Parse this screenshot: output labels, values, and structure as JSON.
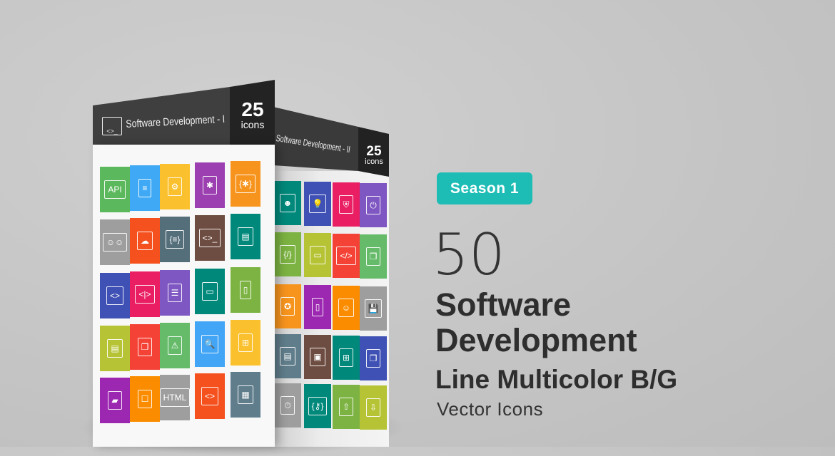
{
  "colors": {
    "accent": "#1dbdb6",
    "header_dark": "#3c3c3c",
    "count_dark": "#222222",
    "text": "#2e2e2e"
  },
  "pack_front": {
    "title": "Software Development - I",
    "count": "25",
    "count_label": "icons",
    "header_icon": "code-window-icon",
    "tiles": [
      {
        "icon": "api-window-icon",
        "glyph": "API",
        "color": "#5cb85c"
      },
      {
        "icon": "documents-icon",
        "glyph": "≡",
        "color": "#3fa9f5"
      },
      {
        "icon": "window-gear-icon",
        "glyph": "⚙",
        "color": "#fbc02d"
      },
      {
        "icon": "window-bug-icon",
        "glyph": "✱",
        "color": "#9c3fb0"
      },
      {
        "icon": "bug-braces-icon",
        "glyph": "{✱}",
        "color": "#f7941d"
      },
      {
        "icon": "team-chat-icon",
        "glyph": "☺☺",
        "color": "#9e9e9e"
      },
      {
        "icon": "cloud-network-icon",
        "glyph": "☁",
        "color": "#f4511e"
      },
      {
        "icon": "window-braces-icon",
        "glyph": "{≡}",
        "color": "#546e7a"
      },
      {
        "icon": "monitor-code-icon",
        "glyph": "<>_",
        "color": "#6d4c41"
      },
      {
        "icon": "monitor-document-icon",
        "glyph": "▤",
        "color": "#00897b"
      },
      {
        "icon": "windows-code-icon",
        "glyph": "<>",
        "color": "#3f51b5"
      },
      {
        "icon": "monitor-code-tags-icon",
        "glyph": "<|>",
        "color": "#e91e63"
      },
      {
        "icon": "server-gear-icon",
        "glyph": "☰",
        "color": "#7e57c2"
      },
      {
        "icon": "devices-icon",
        "glyph": "▭",
        "color": "#00897b"
      },
      {
        "icon": "mobile-window-gear-icon",
        "glyph": "▯",
        "color": "#7cb342"
      },
      {
        "icon": "document-gear-icon",
        "glyph": "▤",
        "color": "#b5c334"
      },
      {
        "icon": "copy-documents-icon",
        "glyph": "❐",
        "color": "#f44336"
      },
      {
        "icon": "warning-icon",
        "glyph": "⚠",
        "color": "#66bb6a"
      },
      {
        "icon": "bug-search-icon",
        "glyph": "🔍",
        "color": "#42a5f5"
      },
      {
        "icon": "flowchart-icon",
        "glyph": "⊞",
        "color": "#fbc02d"
      },
      {
        "icon": "folder-gear-icon",
        "glyph": "▰",
        "color": "#9c27b0"
      },
      {
        "icon": "hello-world-window-icon",
        "glyph": "☐",
        "color": "#fb8c00"
      },
      {
        "icon": "html-window-icon",
        "glyph": "HTML",
        "color": "#9e9e9e"
      },
      {
        "icon": "code-search-icon",
        "glyph": "<>",
        "color": "#f4511e"
      },
      {
        "icon": "monitor-layout-icon",
        "glyph": "▦",
        "color": "#607d8b"
      }
    ]
  },
  "pack_back": {
    "title": "Software Development - II",
    "count": "25",
    "count_label": "icons",
    "tiles": [
      {
        "icon": "head-mind-icon",
        "glyph": "☻",
        "color": "#00897b"
      },
      {
        "icon": "idea-bulbs-icon",
        "glyph": "💡",
        "color": "#3f51b5"
      },
      {
        "icon": "network-shield-icon",
        "glyph": "⛨",
        "color": "#e91e63"
      },
      {
        "icon": "power-icon",
        "glyph": "⏻",
        "color": "#7e57c2"
      },
      {
        "icon": "code-braces-icon",
        "glyph": "{/}",
        "color": "#7cb342"
      },
      {
        "icon": "monitor-window-icon",
        "glyph": "▭",
        "color": "#b5c334"
      },
      {
        "icon": "code-document-icon",
        "glyph": "</>",
        "color": "#f44336"
      },
      {
        "icon": "windows-stack-icon",
        "glyph": "❐",
        "color": "#66bb6a"
      },
      {
        "icon": "award-badge-icon",
        "glyph": "✪",
        "color": "#f7941d"
      },
      {
        "icon": "tablet-pen-icon",
        "glyph": "▯",
        "color": "#9c27b0"
      },
      {
        "icon": "robot-icon",
        "glyph": "☺",
        "color": "#fb8c00"
      },
      {
        "icon": "floppy-disk-icon",
        "glyph": "💾",
        "color": "#9e9e9e"
      },
      {
        "icon": "document-search-icon",
        "glyph": "▤",
        "color": "#607d8b"
      },
      {
        "icon": "monitor-gear-icon",
        "glyph": "▣",
        "color": "#6d4c41"
      },
      {
        "icon": "hierarchy-icon",
        "glyph": "⊞",
        "color": "#00897b"
      },
      {
        "icon": "window-bug-gear-icon",
        "glyph": "❐",
        "color": "#3f51b5"
      },
      {
        "icon": "user-clock-icon",
        "glyph": "⏱",
        "color": "#9e9e9e"
      },
      {
        "icon": "key-code-icon",
        "glyph": "{⚷}",
        "color": "#00897b"
      },
      {
        "icon": "server-upload-icon",
        "glyph": "⇧",
        "color": "#7cb342"
      },
      {
        "icon": "server-download-icon",
        "glyph": "⇩",
        "color": "#b5c334"
      }
    ]
  },
  "text": {
    "badge": "Season 1",
    "count": "50",
    "line1": "Software",
    "line2": "Development",
    "line3": "Line Multicolor B/G",
    "line4": "Vector Icons"
  }
}
